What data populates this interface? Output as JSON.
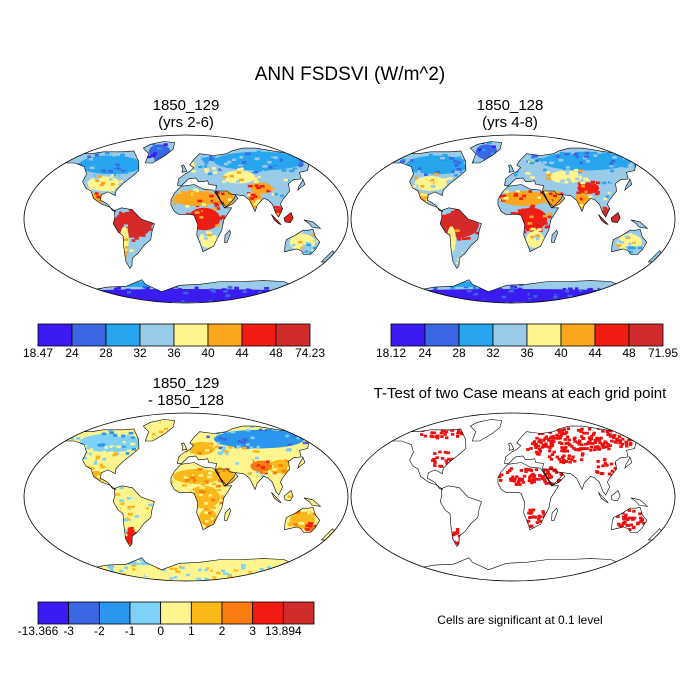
{
  "figure_title": "ANN FSDSVI (W/m^2)",
  "colors": {
    "seq8": [
      "#3a1cf2",
      "#3c67e4",
      "#27a5ee",
      "#99cbe8",
      "#fff58f",
      "#fba71d",
      "#f21b12",
      "#d22b2c"
    ],
    "div9": [
      "#3a1cf2",
      "#3c67e4",
      "#2a96ee",
      "#7fd1fa",
      "#fff58f",
      "#fbb819",
      "#fa7b10",
      "#f31a11",
      "#d22b2c"
    ],
    "sig": "#ef0e0e",
    "land_base": "#f3f3f3",
    "ocean": "#ffffff",
    "outline": "#000000"
  },
  "chart_data": [
    {
      "type": "heatmap",
      "id": "panel1",
      "title_line1": "1850_129",
      "title_line2": "(yrs 2-6)",
      "colorbar_labels": [
        "18.47",
        "24",
        "28",
        "32",
        "36",
        "40",
        "44",
        "48",
        "74.23"
      ],
      "min": 18.47,
      "max": 74.23,
      "regions": [
        {
          "name": "amazon",
          "level": 7
        },
        {
          "name": "central-africa",
          "level": 6
        },
        {
          "name": "sahara",
          "level": 5
        },
        {
          "name": "arabia",
          "level": 5
        },
        {
          "name": "india",
          "level": 5
        },
        {
          "name": "southeast-asia",
          "level": 6
        },
        {
          "name": "australia-interior",
          "level": 4
        },
        {
          "name": "australia-coast",
          "level": 3
        },
        {
          "name": "canada",
          "level": 2
        },
        {
          "name": "siberia",
          "level": 2
        },
        {
          "name": "europe",
          "level": 3
        },
        {
          "name": "usa",
          "level": 4
        },
        {
          "name": "china",
          "level": 3
        },
        {
          "name": "tibet",
          "level": 5
        },
        {
          "name": "central-asia",
          "level": 4
        },
        {
          "name": "patagonia",
          "level": 3
        },
        {
          "name": "antarctica-interior",
          "level": 0
        },
        {
          "name": "antarctica-coast",
          "level": 2
        },
        {
          "name": "greenland",
          "level": 1
        },
        {
          "name": "southern-africa",
          "level": 4
        },
        {
          "name": "mexico",
          "level": 5
        },
        {
          "name": "andes",
          "level": 4
        }
      ]
    },
    {
      "type": "heatmap",
      "id": "panel2",
      "title_line1": "1850_128",
      "title_line2": "(yrs 4-8)",
      "colorbar_labels": [
        "18.12",
        "24",
        "28",
        "32",
        "36",
        "40",
        "44",
        "48",
        "71.95"
      ],
      "min": 18.12,
      "max": 71.95,
      "regions": [
        {
          "name": "amazon",
          "level": 7
        },
        {
          "name": "central-africa",
          "level": 6
        },
        {
          "name": "sahara",
          "level": 5
        },
        {
          "name": "arabia",
          "level": 5
        },
        {
          "name": "india",
          "level": 5
        },
        {
          "name": "southeast-asia",
          "level": 7
        },
        {
          "name": "australia-interior",
          "level": 4
        },
        {
          "name": "australia-coast",
          "level": 3
        },
        {
          "name": "canada",
          "level": 2
        },
        {
          "name": "siberia",
          "level": 2
        },
        {
          "name": "europe",
          "level": 3
        },
        {
          "name": "usa",
          "level": 4
        },
        {
          "name": "china",
          "level": 3
        },
        {
          "name": "tibet",
          "level": 6
        },
        {
          "name": "central-asia",
          "level": 4
        },
        {
          "name": "patagonia",
          "level": 3
        },
        {
          "name": "antarctica-interior",
          "level": 0
        },
        {
          "name": "antarctica-coast",
          "level": 2
        },
        {
          "name": "greenland",
          "level": 1
        },
        {
          "name": "southern-africa",
          "level": 4
        },
        {
          "name": "mexico",
          "level": 5
        },
        {
          "name": "andes",
          "level": 4
        }
      ]
    },
    {
      "type": "heatmap",
      "id": "panel3",
      "title_line1": "1850_129",
      "title_line2": "- 1850_128",
      "colorbar_labels": [
        "-13.366",
        "-3",
        "-2",
        "-1",
        "0",
        "1",
        "2",
        "3",
        "13.894"
      ],
      "min": -13.366,
      "max": 13.894,
      "regions": [
        {
          "name": "amazon",
          "level": 4
        },
        {
          "name": "central-africa",
          "level": 5
        },
        {
          "name": "sahara",
          "level": 5
        },
        {
          "name": "arabia",
          "level": 5
        },
        {
          "name": "india",
          "level": 4
        },
        {
          "name": "southeast-asia",
          "level": 4
        },
        {
          "name": "australia-interior",
          "level": 5
        },
        {
          "name": "australia-coast",
          "level": 6
        },
        {
          "name": "canada",
          "level": 3
        },
        {
          "name": "siberia",
          "level": 2
        },
        {
          "name": "europe",
          "level": 5
        },
        {
          "name": "usa",
          "level": 4
        },
        {
          "name": "china",
          "level": 5
        },
        {
          "name": "tibet",
          "level": 6
        },
        {
          "name": "central-asia",
          "level": 4
        },
        {
          "name": "patagonia",
          "level": 7
        },
        {
          "name": "antarctica-interior",
          "level": 4
        },
        {
          "name": "antarctica-coast",
          "level": 3
        },
        {
          "name": "greenland",
          "level": 4
        },
        {
          "name": "southern-africa",
          "level": 5
        },
        {
          "name": "mexico",
          "level": 5
        },
        {
          "name": "andes",
          "level": 4
        }
      ]
    },
    {
      "type": "heatmap",
      "id": "panel4",
      "title_line1": "T-Test of two Case means at each grid point",
      "note": "Cells are significant at 0.1 level",
      "significance_level": 0.1,
      "significant_regions": [
        "siberia",
        "central-asia",
        "sahara",
        "arabia",
        "australia-interior",
        "patagonia",
        "usa-east",
        "europe-east",
        "china",
        "canada-north",
        "southern-africa"
      ]
    }
  ]
}
